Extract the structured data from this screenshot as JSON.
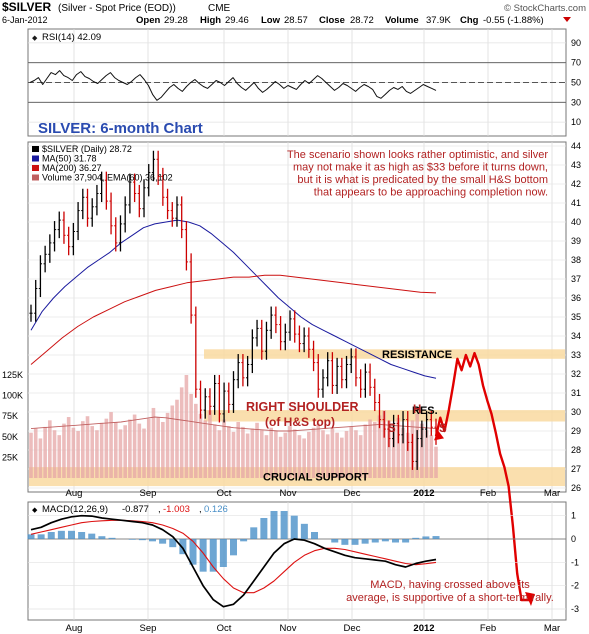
{
  "header": {
    "title": "$SILVER",
    "subtitle": "(Silver - Spot Price (EOD))",
    "exchange": "CME",
    "date": "6-Jan-2012",
    "open_label": "Open",
    "open": "29.28",
    "high_label": "High",
    "high": "29.46",
    "low_label": "Low",
    "low": "28.57",
    "close_label": "Close",
    "close": "28.72",
    "volume_label": "Volume",
    "volume": "37.9K",
    "chg_label": "Chg",
    "chg": "-0.55 (-1.88%)",
    "watermark": "© StockCharts.com"
  },
  "colors": {
    "price_up": "#000000",
    "price_down": "#cc0000",
    "ma50": "#1a1a9e",
    "ma200": "#cc1111",
    "volume": "#e6a5a5",
    "band": "#f9d9a0",
    "annotation": "#b22222",
    "blue_title": "#2a4bb0",
    "macd_hist": "#4a90c8"
  },
  "chart_data": [
    {
      "type": "line",
      "panel": "rsi",
      "legend": "RSI(14) 42.09",
      "ylim": [
        0,
        100
      ],
      "ticks": [
        "90",
        "70",
        "50",
        "30",
        "10"
      ],
      "tick_values": [
        90,
        70,
        50,
        30,
        10
      ],
      "reference_lines": [
        70,
        50,
        30
      ],
      "values": [
        50,
        52,
        55,
        48,
        54,
        60,
        58,
        62,
        57,
        55,
        52,
        58,
        61,
        56,
        54,
        51,
        49,
        53,
        57,
        60,
        55,
        52,
        50,
        48,
        51,
        55,
        58,
        53,
        47,
        38,
        32,
        35,
        40,
        45,
        48,
        44,
        41,
        46,
        50,
        53,
        49,
        46,
        44,
        48,
        52,
        50,
        47,
        51,
        55,
        49,
        45,
        42,
        46,
        50,
        44,
        40,
        43,
        47,
        51,
        48,
        44,
        47,
        45,
        43,
        48,
        52,
        49,
        53,
        57,
        54,
        50,
        46,
        42,
        45,
        49,
        47,
        44,
        41,
        45,
        48,
        46,
        43,
        36,
        34,
        38,
        42,
        45,
        43,
        46,
        41,
        39,
        42,
        45,
        48,
        46,
        44,
        42
      ]
    },
    {
      "type": "line",
      "panel": "price",
      "legend": [
        "$SILVER (Daily) 28.72",
        "MA(50) 31.78",
        "MA(200) 36.27",
        "Volume 37,904, EMA(60) 36,102"
      ],
      "ylim": [
        26,
        44
      ],
      "ticks": [
        "44",
        "43",
        "42",
        "41",
        "40",
        "39",
        "38",
        "37",
        "36",
        "35",
        "34",
        "33",
        "32",
        "31",
        "30",
        "29",
        "28",
        "27",
        "26"
      ],
      "volume_ticks": [
        "125K",
        "100K",
        "75K",
        "50K",
        "25K"
      ],
      "volume_tick_values": [
        125,
        100,
        75,
        50,
        25
      ],
      "x_labels": [
        "Aug",
        "Sep",
        "Oct",
        "Nov",
        "Dec",
        "2012",
        "Feb",
        "Mar"
      ],
      "close": [
        35.2,
        36.5,
        37.8,
        38.3,
        38.9,
        39.6,
        40.1,
        39.3,
        38.7,
        39.5,
        40.6,
        41.3,
        40.2,
        40.8,
        41.5,
        42.2,
        41.1,
        39.8,
        38.9,
        39.9,
        40.9,
        42.1,
        41.5,
        40.7,
        41.8,
        42.6,
        43.3,
        42.4,
        41.3,
        40.6,
        40.2,
        40.9,
        39.6,
        37.9,
        35.1,
        31.2,
        30.1,
        30.8,
        30.3,
        31.5,
        29.9,
        31.1,
        30.4,
        31.7,
        32.6,
        31.8,
        32.5,
        33.9,
        34.4,
        33.2,
        34.3,
        35.1,
        34.6,
        33.7,
        34.2,
        34.9,
        34.1,
        33.6,
        34.0,
        33.3,
        32.6,
        31.2,
        31.8,
        32.7,
        31.4,
        32.4,
        31.7,
        32.5,
        32.9,
        31.8,
        31.2,
        32.1,
        31.3,
        30.5,
        29.6,
        29.1,
        28.6,
        29.4,
        28.8,
        29.6,
        28.4,
        27.4,
        28.6,
        29.1,
        29.6,
        29.2,
        28.72
      ],
      "ma50": [
        34.3,
        35.3,
        36.0,
        36.6,
        37.1,
        37.6,
        38.0,
        38.4,
        38.9,
        39.3,
        39.7,
        39.9,
        40.0,
        40.1,
        40.0,
        39.8,
        39.4,
        38.9,
        38.4,
        37.8,
        37.2,
        36.6,
        36.0,
        35.5,
        35.0,
        34.6,
        34.3,
        34.0,
        33.7,
        33.4,
        33.1,
        32.8,
        32.5,
        32.3,
        32.1,
        31.9,
        31.78
      ],
      "ma200": [
        32.5,
        33.2,
        33.9,
        34.5,
        35.0,
        35.4,
        35.8,
        36.1,
        36.4,
        36.6,
        36.8,
        36.9,
        37.0,
        37.1,
        37.1,
        37.2,
        37.2,
        37.1,
        37.0,
        36.9,
        36.8,
        36.7,
        36.6,
        36.5,
        36.4,
        36.3,
        36.27
      ],
      "volume_k": [
        55,
        60,
        48,
        62,
        70,
        58,
        52,
        66,
        74,
        61,
        57,
        69,
        75,
        63,
        58,
        67,
        72,
        80,
        68,
        59,
        64,
        71,
        77,
        66,
        60,
        72,
        85,
        74,
        68,
        79,
        88,
        95,
        110,
        125,
        102,
        90,
        78,
        70,
        82,
        65,
        58,
        71,
        63,
        56,
        68,
        62,
        54,
        60,
        67,
        58,
        52,
        61,
        57,
        50,
        55,
        63,
        59,
        52,
        48,
        56,
        61,
        66,
        58,
        53,
        60,
        55,
        49,
        57,
        62,
        58,
        52,
        65,
        71,
        68,
        76,
        82,
        70,
        64,
        73,
        61,
        55,
        70,
        78,
        66,
        58,
        52,
        38
      ],
      "volume_ema60": [
        60,
        61,
        62,
        63,
        64,
        65,
        66,
        67,
        68,
        70,
        72,
        74,
        73,
        71,
        69,
        67,
        65,
        63,
        61,
        60,
        59,
        58,
        57,
        57,
        58,
        59,
        60,
        61,
        62,
        63,
        64,
        65,
        64,
        63,
        62,
        61,
        60
      ],
      "projection": [
        28.72,
        29.7,
        29.0,
        30.1,
        31.4,
        32.8,
        32.2,
        33.0,
        32.4,
        33.1,
        32.5,
        31.4,
        30.6,
        29.9,
        28.9,
        27.8,
        27.1,
        26.1,
        24.0,
        21.5,
        18.8,
        16.0,
        14.5
      ],
      "bands": [
        {
          "label": "RESISTANCE",
          "from": 32.8,
          "to": 33.3
        },
        {
          "label": "RES.",
          "from": 29.5,
          "to": 30.1
        },
        {
          "label": "CRUCIAL SUPPORT",
          "from": 26.1,
          "to": 27.1
        }
      ],
      "annotations": {
        "title": "SILVER: 6-month Chart",
        "note": [
          "The scenario shown looks rather optimistic, and silver",
          "may not make it as high as $33 before it turns down,",
          "but it is what is predicated by the small H&S bottom",
          "that appears to be approaching completion now."
        ],
        "shoulder": [
          "RIGHT SHOULDER",
          "(of H&S top)"
        ],
        "left_s": "S",
        "head": "H",
        "right_s": "S"
      }
    },
    {
      "type": "line",
      "panel": "macd",
      "legend": {
        "name": "MACD(12,26,9)",
        "macd": "-0.877",
        "signal": "-1.003",
        "hist": "0.126"
      },
      "ylim": [
        -3.3,
        1.5
      ],
      "ticks": [
        "1",
        "0",
        "-1",
        "-2",
        "-3"
      ],
      "tick_values": [
        1,
        0,
        -1,
        -2,
        -3
      ],
      "x_labels": [
        "Aug",
        "Sep",
        "Oct",
        "Nov",
        "Dec",
        "2012",
        "Feb",
        "Mar"
      ],
      "macd": [
        0.4,
        0.5,
        0.7,
        0.85,
        0.95,
        1.0,
        0.98,
        0.9,
        0.85,
        0.8,
        0.75,
        0.7,
        0.6,
        0.4,
        0.1,
        -0.4,
        -1.2,
        -2.0,
        -2.6,
        -2.9,
        -2.8,
        -2.4,
        -1.8,
        -1.2,
        -0.6,
        -0.2,
        0.0,
        -0.05,
        -0.2,
        -0.4,
        -0.55,
        -0.7,
        -0.8,
        -0.85,
        -0.9,
        -0.95,
        -1.1,
        -1.2,
        -1.05,
        -0.95,
        -0.877
      ],
      "signal": [
        0.2,
        0.3,
        0.4,
        0.5,
        0.6,
        0.7,
        0.75,
        0.78,
        0.8,
        0.8,
        0.78,
        0.75,
        0.7,
        0.6,
        0.45,
        0.25,
        -0.1,
        -0.6,
        -1.2,
        -1.7,
        -2.1,
        -2.3,
        -2.3,
        -2.1,
        -1.8,
        -1.4,
        -1.0,
        -0.7,
        -0.5,
        -0.4,
        -0.4,
        -0.45,
        -0.55,
        -0.65,
        -0.75,
        -0.85,
        -0.95,
        -1.05,
        -1.1,
        -1.06,
        -1.003
      ],
      "annotation": [
        "MACD, having crossed above its",
        "average, is supportive of a short-term rally."
      ]
    }
  ]
}
